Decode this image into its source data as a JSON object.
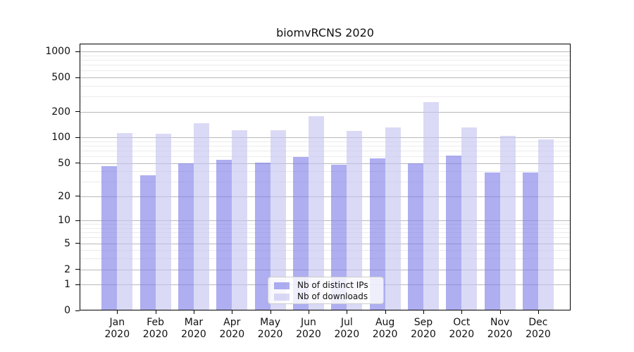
{
  "figure": {
    "title": "biomvRCNS 2020"
  },
  "chart_data": {
    "type": "bar",
    "title": "biomvRCNS 2020",
    "categories": [
      "Jan 2020",
      "Feb 2020",
      "Mar 2020",
      "Apr 2020",
      "May 2020",
      "Jun 2020",
      "Jul 2020",
      "Aug 2020",
      "Sep 2020",
      "Oct 2020",
      "Nov 2020",
      "Dec 2020"
    ],
    "series": [
      {
        "name": "Nb of distinct IPs",
        "values": [
          46,
          36,
          50,
          55,
          51,
          59,
          48,
          57,
          50,
          61,
          39,
          39
        ]
      },
      {
        "name": "Nb of downloads",
        "values": [
          113,
          111,
          147,
          122,
          122,
          178,
          120,
          132,
          260,
          131,
          105,
          96
        ]
      }
    ],
    "xlabel": "",
    "ylabel": "",
    "yscale": "log1p",
    "ylim": [
      0,
      1236
    ],
    "y_major_ticks": [
      0,
      1,
      2,
      5,
      10,
      20,
      50,
      100,
      200,
      500,
      1000
    ],
    "y_minor_gridlines": [
      3,
      4,
      6,
      7,
      8,
      9,
      30,
      40,
      60,
      70,
      80,
      90,
      300,
      400,
      600,
      700,
      800,
      900
    ],
    "grid": true,
    "legend_position": "lower center"
  },
  "legend": {
    "items": [
      {
        "label": "Nb of distinct IPs"
      },
      {
        "label": "Nb of downloads"
      }
    ]
  },
  "colors": {
    "ips_bar": "rgba(124,124,233,0.62)",
    "downloads_bar": "rgba(196,196,241,0.62)",
    "grid_major": "#b9b9b9",
    "grid_minor": "#ebebeb",
    "axis_frame": "#000000",
    "text": "#111111",
    "legend_border": "#cccccc",
    "legend_background": "rgba(255,255,255,0.8)"
  }
}
